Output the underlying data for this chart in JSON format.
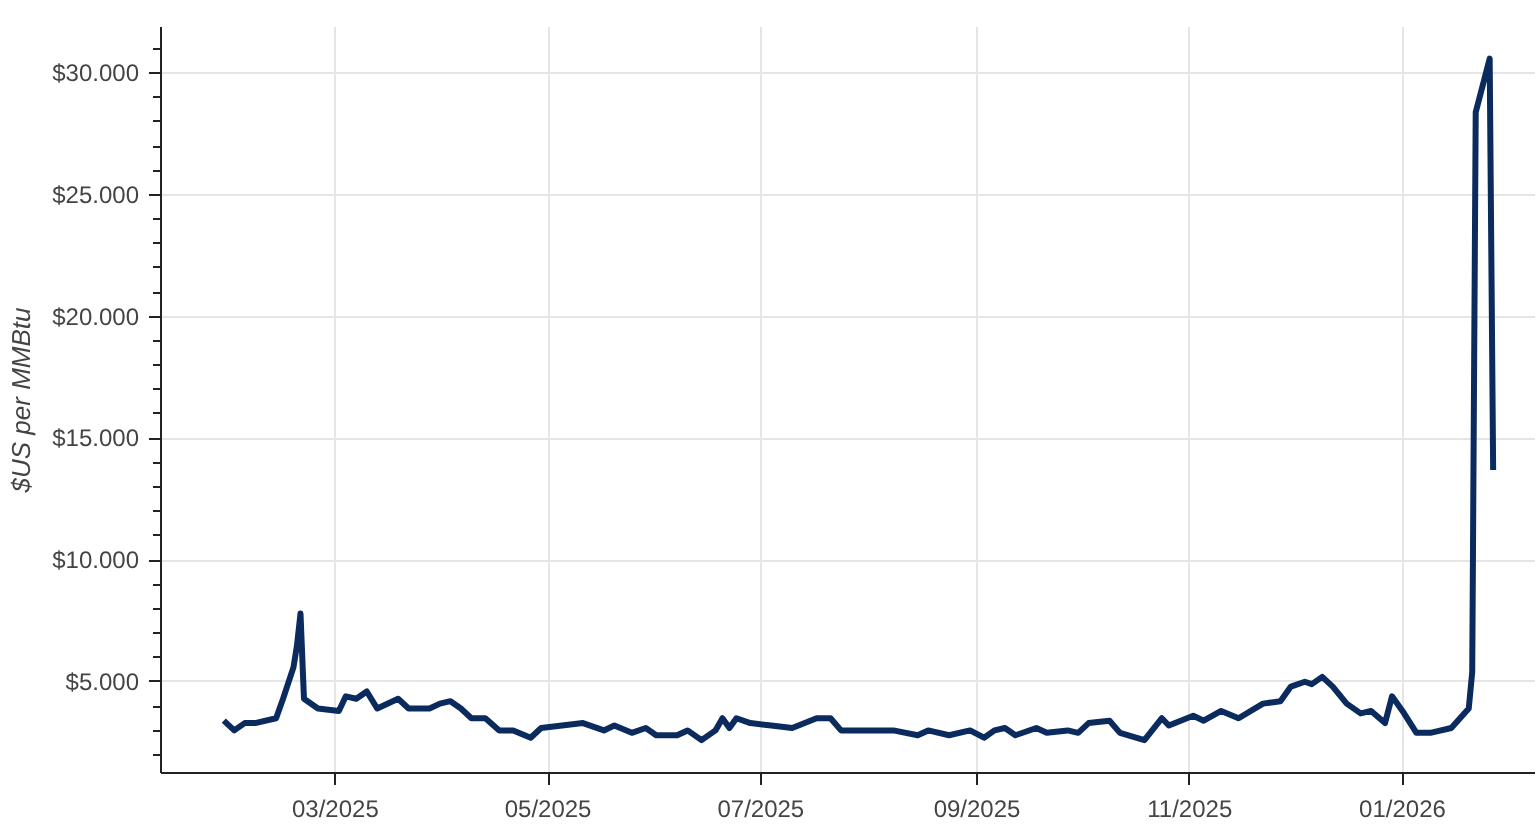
{
  "chart_data": {
    "type": "line",
    "ylabel": "$US per MMBtu",
    "x": [
      "2025-01-28",
      "2025-01-31",
      "2025-02-03",
      "2025-02-06",
      "2025-02-12",
      "2025-02-14",
      "2025-02-17",
      "2025-02-18",
      "2025-02-19",
      "2025-02-20",
      "2025-02-24",
      "2025-03-02",
      "2025-03-04",
      "2025-03-07",
      "2025-03-10",
      "2025-03-13",
      "2025-03-19",
      "2025-03-22",
      "2025-03-28",
      "2025-03-31",
      "2025-04-03",
      "2025-04-06",
      "2025-04-09",
      "2025-04-13",
      "2025-04-17",
      "2025-04-21",
      "2025-04-26",
      "2025-04-29",
      "2025-05-05",
      "2025-05-11",
      "2025-05-17",
      "2025-05-20",
      "2025-05-25",
      "2025-05-29",
      "2025-06-01",
      "2025-06-07",
      "2025-06-10",
      "2025-06-14",
      "2025-06-18",
      "2025-06-20",
      "2025-06-22",
      "2025-06-24",
      "2025-06-28",
      "2025-07-04",
      "2025-07-10",
      "2025-07-17",
      "2025-07-21",
      "2025-07-24",
      "2025-07-25",
      "2025-08-02",
      "2025-08-08",
      "2025-08-15",
      "2025-08-18",
      "2025-08-24",
      "2025-08-30",
      "2025-09-03",
      "2025-09-06",
      "2025-09-09",
      "2025-09-12",
      "2025-09-18",
      "2025-09-21",
      "2025-09-27",
      "2025-09-30",
      "2025-10-03",
      "2025-10-09",
      "2025-10-12",
      "2025-10-19",
      "2025-10-24",
      "2025-10-26",
      "2025-11-02",
      "2025-11-05",
      "2025-11-10",
      "2025-11-15",
      "2025-11-22",
      "2025-11-27",
      "2025-11-30",
      "2025-12-04",
      "2025-12-06",
      "2025-12-09",
      "2025-12-12",
      "2025-12-16",
      "2025-12-20",
      "2025-12-23",
      "2025-12-27",
      "2025-12-29",
      "2026-01-01",
      "2026-01-05",
      "2026-01-09",
      "2026-01-15",
      "2026-01-20",
      "2026-01-21",
      "2026-01-22",
      "2026-01-26",
      "2026-01-27"
    ],
    "series": [
      {
        "color": "#0b2a5e",
        "values": [
          3.4,
          3.0,
          3.3,
          3.3,
          3.5,
          4.3,
          5.6,
          6.5,
          7.8,
          4.3,
          3.9,
          3.8,
          4.4,
          4.3,
          4.6,
          3.9,
          4.3,
          3.9,
          3.9,
          4.1,
          4.2,
          3.9,
          3.5,
          3.5,
          3.0,
          3.0,
          2.7,
          3.1,
          3.2,
          3.3,
          3.0,
          3.2,
          2.9,
          3.1,
          2.8,
          2.8,
          3.0,
          2.6,
          3.0,
          3.5,
          3.1,
          3.5,
          3.3,
          3.2,
          3.1,
          3.5,
          3.5,
          3.0,
          3.0,
          3.0,
          3.0,
          2.8,
          3.0,
          2.8,
          3.0,
          2.7,
          3.0,
          3.1,
          2.8,
          3.1,
          2.9,
          3.0,
          2.9,
          3.3,
          3.4,
          2.9,
          2.6,
          3.5,
          3.2,
          3.6,
          3.4,
          3.8,
          3.5,
          4.1,
          4.2,
          4.8,
          5.0,
          4.9,
          5.2,
          4.8,
          4.1,
          3.7,
          3.8,
          3.3,
          4.4,
          3.8,
          2.9,
          2.9,
          3.1,
          3.9,
          5.4,
          28.4,
          30.6,
          13.7
        ]
      }
    ],
    "xlim": [
      "2025-01-10",
      "2026-02-08"
    ],
    "xticks": [
      {
        "value": "2025-03-01",
        "label": "03/2025"
      },
      {
        "value": "2025-05-01",
        "label": "05/2025"
      },
      {
        "value": "2025-07-01",
        "label": "07/2025"
      },
      {
        "value": "2025-09-01",
        "label": "09/2025"
      },
      {
        "value": "2025-11-01",
        "label": "11/2025"
      },
      {
        "value": "2026-01-01",
        "label": "01/2026"
      }
    ],
    "ylim": [
      1.25,
      31.9
    ],
    "yticks": [
      {
        "value": 5,
        "label": "$5.000"
      },
      {
        "value": 10,
        "label": "$10.000"
      },
      {
        "value": 15,
        "label": "$15.000"
      },
      {
        "value": 20,
        "label": "$20.000"
      },
      {
        "value": 25,
        "label": "$25.000"
      },
      {
        "value": 30,
        "label": "$30.000"
      }
    ],
    "grid": true,
    "line_style": "solid",
    "marker": "none"
  }
}
